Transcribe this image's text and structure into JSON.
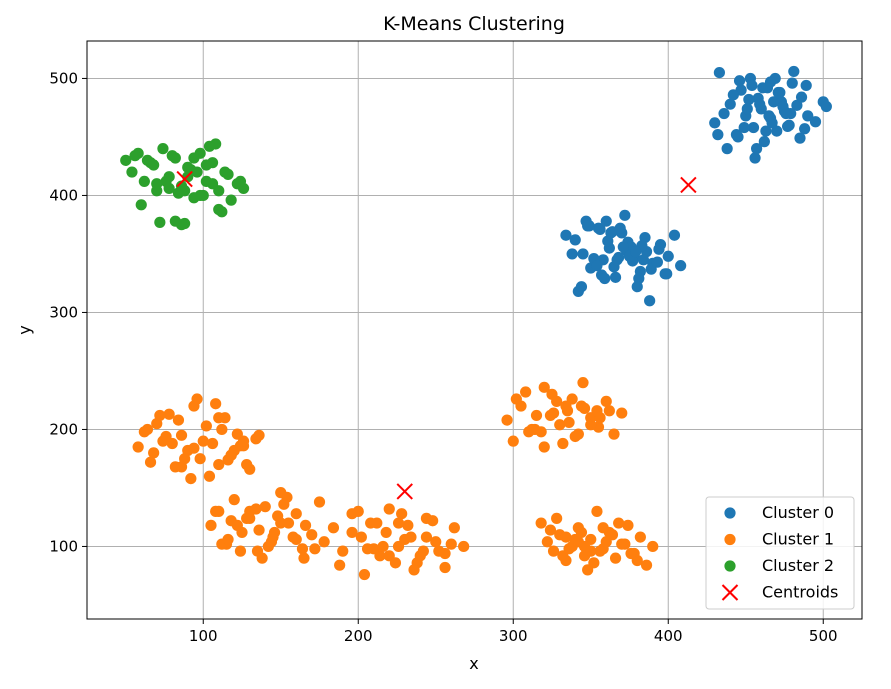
{
  "chart_data": {
    "type": "scatter",
    "title": "K-Means Clustering",
    "xlabel": "x",
    "ylabel": "y",
    "xlim": [
      25,
      525
    ],
    "ylim": [
      38,
      532
    ],
    "xticks": [
      100,
      200,
      300,
      400,
      500
    ],
    "yticks": [
      100,
      200,
      300,
      400,
      500
    ],
    "grid": true,
    "legend_position": "lower right",
    "series": [
      {
        "name": "Cluster 0",
        "color": "#1f77b4",
        "marker": "circle",
        "x": [
          430,
          436,
          440,
          444,
          447,
          450,
          453,
          455,
          458,
          460,
          462,
          464,
          466,
          468,
          470,
          472,
          475,
          478,
          480,
          483,
          486,
          490,
          495,
          500,
          433,
          438,
          442,
          446,
          451,
          456,
          461,
          465,
          469,
          473,
          477,
          481,
          485,
          489,
          457,
          463,
          471,
          479,
          445,
          452,
          467,
          474,
          449,
          459,
          476,
          488,
          502,
          454,
          466,
          432,
          340,
          345,
          350,
          355,
          358,
          362,
          366,
          370,
          374,
          378,
          382,
          386,
          390,
          395,
          400,
          404,
          408,
          342,
          347,
          352,
          357,
          361,
          365,
          369,
          373,
          377,
          381,
          385,
          389,
          394,
          399,
          334,
          338,
          344,
          349,
          354,
          359,
          364,
          368,
          372,
          376,
          380,
          384,
          388,
          393,
          371,
          363,
          356,
          375,
          383,
          348,
          367,
          398,
          360,
          379
        ],
        "y": [
          462,
          470,
          478,
          452,
          490,
          468,
          500,
          458,
          483,
          474,
          446,
          492,
          466,
          480,
          455,
          488,
          472,
          460,
          496,
          477,
          484,
          468,
          463,
          480,
          505,
          440,
          486,
          498,
          474,
          432,
          492,
          468,
          500,
          480,
          459,
          506,
          449,
          494,
          440,
          455,
          488,
          470,
          450,
          482,
          462,
          476,
          458,
          478,
          470,
          457,
          476,
          494,
          497,
          452,
          362,
          350,
          338,
          372,
          345,
          355,
          330,
          368,
          360,
          348,
          335,
          352,
          342,
          358,
          348,
          366,
          340,
          318,
          378,
          346,
          332,
          361,
          339,
          372,
          353,
          344,
          329,
          364,
          337,
          354,
          333,
          366,
          350,
          322,
          374,
          340,
          329,
          369,
          347,
          383,
          356,
          322,
          345,
          310,
          343,
          356,
          368,
          371,
          348,
          357,
          374,
          345,
          333,
          378,
          352
        ]
      },
      {
        "name": "Cluster 1",
        "color": "#ff7f0e",
        "marker": "circle",
        "x": [
          58,
          62,
          66,
          70,
          74,
          78,
          82,
          86,
          90,
          94,
          98,
          102,
          106,
          110,
          114,
          118,
          122,
          126,
          130,
          134,
          72,
          80,
          88,
          96,
          104,
          112,
          120,
          128,
          136,
          68,
          84,
          92,
          100,
          108,
          116,
          124,
          64,
          76,
          86,
          94,
          110,
          118,
          126,
          105,
          110,
          115,
          120,
          125,
          130,
          135,
          140,
          145,
          150,
          155,
          160,
          165,
          170,
          175,
          112,
          118,
          124,
          130,
          136,
          142,
          148,
          154,
          160,
          166,
          172,
          108,
          116,
          128,
          138,
          146,
          152,
          158,
          164,
          122,
          134,
          144,
          150,
          178,
          184,
          190,
          196,
          202,
          208,
          214,
          220,
          226,
          232,
          238,
          244,
          250,
          256,
          262,
          268,
          188,
          196,
          204,
          212,
          220,
          228,
          236,
          244,
          252,
          260,
          200,
          210,
          218,
          224,
          230,
          240,
          248,
          256,
          216,
          226,
          234,
          242,
          206,
          296,
          300,
          305,
          310,
          315,
          320,
          325,
          330,
          335,
          340,
          345,
          350,
          355,
          360,
          365,
          370,
          302,
          308,
          314,
          320,
          326,
          332,
          338,
          344,
          350,
          356,
          362,
          318,
          328,
          336,
          346,
          354,
          312,
          324,
          342,
          334,
          318,
          322,
          326,
          330,
          334,
          338,
          342,
          346,
          350,
          354,
          358,
          362,
          366,
          370,
          374,
          378,
          382,
          386,
          390,
          324,
          332,
          340,
          348,
          356,
          364,
          372,
          380,
          328,
          336,
          344,
          352,
          360,
          368,
          376,
          334,
          346,
          358,
          342,
          350
        ],
        "y": [
          185,
          198,
          172,
          205,
          190,
          213,
          168,
          195,
          182,
          220,
          175,
          203,
          188,
          170,
          210,
          178,
          196,
          186,
          166,
          192,
          212,
          188,
          175,
          226,
          160,
          200,
          182,
          170,
          195,
          180,
          208,
          158,
          190,
          222,
          174,
          186,
          200,
          194,
          168,
          184,
          210,
          178,
          190,
          118,
          130,
          102,
          140,
          112,
          124,
          96,
          134,
          108,
          146,
          120,
          128,
          90,
          110,
          138,
          102,
          122,
          96,
          130,
          114,
          100,
          126,
          142,
          106,
          118,
          98,
          130,
          106,
          124,
          90,
          112,
          136,
          108,
          98,
          118,
          132,
          104,
          120,
          104,
          116,
          96,
          128,
          108,
          120,
          92,
          132,
          100,
          118,
          86,
          124,
          104,
          94,
          116,
          100,
          84,
          112,
          76,
          120,
          92,
          128,
          80,
          108,
          96,
          102,
          130,
          98,
          112,
          86,
          106,
          92,
          122,
          82,
          100,
          120,
          108,
          96,
          98,
          208,
          190,
          220,
          198,
          212,
          185,
          230,
          204,
          216,
          194,
          240,
          210,
          202,
          224,
          196,
          214,
          226,
          232,
          200,
          236,
          214,
          188,
          226,
          220,
          204,
          210,
          216,
          198,
          224,
          206,
          218,
          216,
          200,
          212,
          196,
          220,
          120,
          104,
          96,
          110,
          88,
          100,
          116,
          92,
          106,
          130,
          98,
          112,
          90,
          102,
          118,
          94,
          108,
          84,
          100,
          114,
          92,
          106,
          80,
          96,
          110,
          102,
          88,
          124,
          98,
          112,
          86,
          104,
          120,
          94,
          108,
          100,
          116,
          104,
          96
        ]
      },
      {
        "name": "Cluster 2",
        "color": "#2ca02c",
        "marker": "circle",
        "x": [
          50,
          54,
          58,
          62,
          66,
          70,
          74,
          78,
          82,
          86,
          90,
          94,
          98,
          102,
          106,
          110,
          114,
          118,
          122,
          126,
          60,
          68,
          76,
          84,
          92,
          100,
          108,
          116,
          124,
          72,
          80,
          88,
          96,
          104,
          112,
          64,
          86,
          98,
          110,
          56,
          78,
          94,
          106,
          82,
          90,
          102,
          70,
          88
        ],
        "y": [
          430,
          420,
          436,
          412,
          428,
          404,
          440,
          416,
          432,
          408,
          424,
          398,
          436,
          412,
          428,
          404,
          420,
          396,
          410,
          406,
          392,
          426,
          412,
          402,
          422,
          400,
          444,
          418,
          412,
          377,
          434,
          376,
          420,
          442,
          386,
          430,
          375,
          400,
          388,
          434,
          406,
          432,
          410,
          378,
          416,
          426,
          410,
          404
        ]
      },
      {
        "name": "Centroids",
        "color": "#ff0000",
        "marker": "x",
        "x": [
          88,
          230,
          413
        ],
        "y": [
          414,
          147,
          409
        ]
      }
    ]
  }
}
